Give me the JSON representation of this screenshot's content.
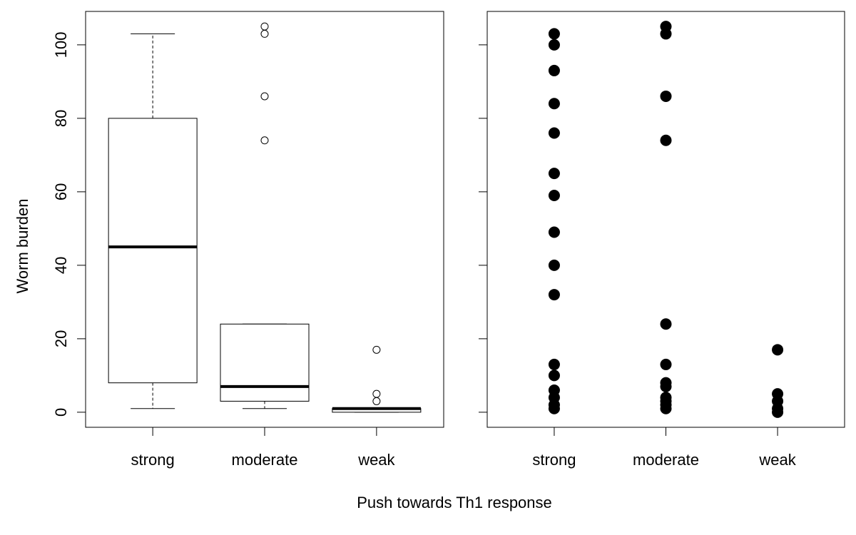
{
  "chart_data": [
    {
      "type": "box",
      "x_label": "Push towards Th1 response",
      "y_label": "Worm burden",
      "categories": [
        "strong",
        "moderate",
        "weak"
      ],
      "boxes": [
        {
          "min": 1,
          "q1": 8,
          "median": 45,
          "q3": 80,
          "max": 103,
          "outliers": []
        },
        {
          "min": 1,
          "q1": 3,
          "median": 7,
          "q3": 24,
          "max": 24,
          "outliers": [
            74,
            86,
            103,
            105
          ]
        },
        {
          "min": 0,
          "q1": 0,
          "median": 1,
          "q3": 1,
          "max": 1,
          "outliers": [
            3,
            5,
            17
          ]
        }
      ],
      "ylim": [
        -4.1,
        109.1
      ],
      "yticks": [
        0,
        20,
        40,
        60,
        80,
        100
      ]
    },
    {
      "type": "strip",
      "categories": [
        "strong",
        "moderate",
        "weak"
      ],
      "values": [
        [
          103,
          100,
          93,
          84,
          76,
          65,
          59,
          49,
          40,
          32,
          13,
          10,
          6,
          4,
          2,
          1
        ],
        [
          105,
          103,
          86,
          74,
          24,
          13,
          8,
          7,
          4,
          3,
          2,
          1
        ],
        [
          17,
          5,
          3,
          1,
          0
        ]
      ],
      "color": "#000000",
      "ylim": [
        -4.1,
        109.1
      ],
      "yticks": [
        0,
        20,
        40,
        60,
        80,
        100
      ]
    }
  ]
}
